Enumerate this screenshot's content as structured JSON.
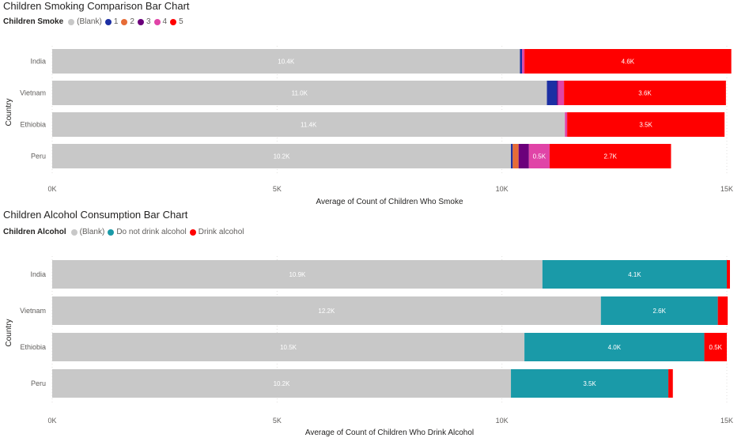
{
  "chart_data": [
    {
      "type": "bar",
      "orientation": "horizontal",
      "stacked": true,
      "title": "Children Smoking Comparison Bar Chart",
      "legend_title": "Children Smoke",
      "legend_position": "top-left",
      "categories": [
        "India",
        "Vietnam",
        "Ethiobia",
        "Peru"
      ],
      "series": [
        {
          "name": "(Blank)",
          "color": "#c8c8c8",
          "values": [
            10400,
            11000,
            11400,
            10200
          ],
          "labels": [
            "10.4K",
            "11.0K",
            "11.4K",
            "10.2K"
          ]
        },
        {
          "name": "1",
          "color": "#1c2fa3",
          "values": [
            50,
            220,
            0,
            40
          ],
          "labels": [
            "",
            "",
            "",
            ""
          ]
        },
        {
          "name": "2",
          "color": "#e66c37",
          "values": [
            0,
            0,
            0,
            130
          ],
          "labels": [
            "",
            "",
            "",
            ""
          ]
        },
        {
          "name": "3",
          "color": "#6b007b",
          "values": [
            0,
            30,
            0,
            230
          ],
          "labels": [
            "",
            "",
            "",
            ""
          ]
        },
        {
          "name": "4",
          "color": "#e044a7",
          "values": [
            50,
            130,
            50,
            460
          ],
          "labels": [
            "",
            "",
            "",
            "0.5K"
          ]
        },
        {
          "name": "5",
          "color": "#ff0000",
          "values": [
            4600,
            3600,
            3500,
            2700
          ],
          "labels": [
            "4.6K",
            "3.6K",
            "3.5K",
            "2.7K"
          ]
        }
      ],
      "xlim": [
        0,
        15000
      ],
      "ticks": [
        0,
        5000,
        10000,
        15000
      ],
      "tick_labels": [
        "0K",
        "5K",
        "10K",
        "15K"
      ],
      "xlabel": "Average of Count of Children Who Smoke",
      "ylabel": "Country",
      "grid": true
    },
    {
      "type": "bar",
      "orientation": "horizontal",
      "stacked": true,
      "title": "Children Alcohol Consumption Bar Chart",
      "legend_title": "Children Alcohol",
      "legend_position": "top-left",
      "categories": [
        "India",
        "Vietnam",
        "Ethiobia",
        "Peru"
      ],
      "series": [
        {
          "name": "(Blank)",
          "color": "#c8c8c8",
          "values": [
            10900,
            12200,
            10500,
            10200
          ],
          "labels": [
            "10.9K",
            "12.2K",
            "10.5K",
            "10.2K"
          ]
        },
        {
          "name": "Do not drink alcohol",
          "color": "#1a9aa8",
          "values": [
            4100,
            2600,
            4000,
            3500
          ],
          "labels": [
            "4.1K",
            "2.6K",
            "4.0K",
            "3.5K"
          ]
        },
        {
          "name": "Drink alcohol",
          "color": "#ff0000",
          "values": [
            70,
            220,
            500,
            100
          ],
          "labels": [
            "",
            "",
            "0.5K",
            ""
          ]
        }
      ],
      "xlim": [
        0,
        15000
      ],
      "ticks": [
        0,
        5000,
        10000,
        15000
      ],
      "tick_labels": [
        "0K",
        "5K",
        "10K",
        "15K"
      ],
      "xlabel": "Average of Count of Children Who Drink Alcohol",
      "ylabel": "Country",
      "grid": true
    }
  ]
}
